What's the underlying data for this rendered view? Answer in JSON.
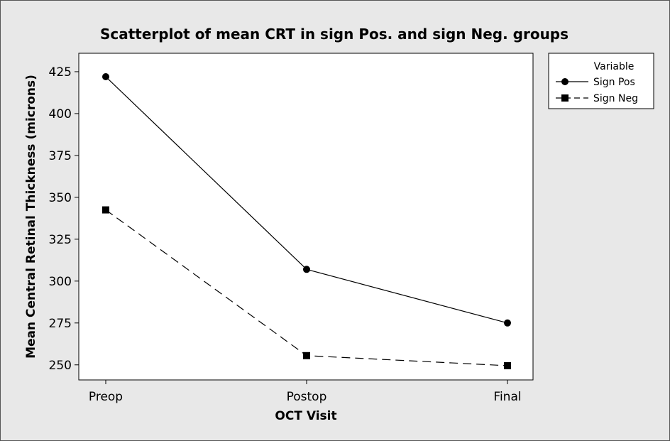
{
  "chart_data": {
    "type": "line",
    "title": "Scatterplot of mean CRT in sign Pos. and sign Neg. groups",
    "xlabel": "OCT Visit",
    "ylabel": "Mean Central Retinal Thickness (microns)",
    "categories": [
      "Preop",
      "Postop",
      "Final"
    ],
    "ylim": [
      241,
      436
    ],
    "yticks": [
      250,
      275,
      300,
      325,
      350,
      375,
      400,
      425
    ],
    "grid": false,
    "legend": {
      "title": "Variable",
      "placement": "right"
    },
    "series": [
      {
        "name": "Sign Pos",
        "marker": "circle",
        "line": "solid",
        "values": [
          422,
          307,
          275
        ]
      },
      {
        "name": "Sign Neg",
        "marker": "square",
        "line": "dashed",
        "values": [
          342.5,
          255.5,
          249.5
        ]
      }
    ]
  }
}
